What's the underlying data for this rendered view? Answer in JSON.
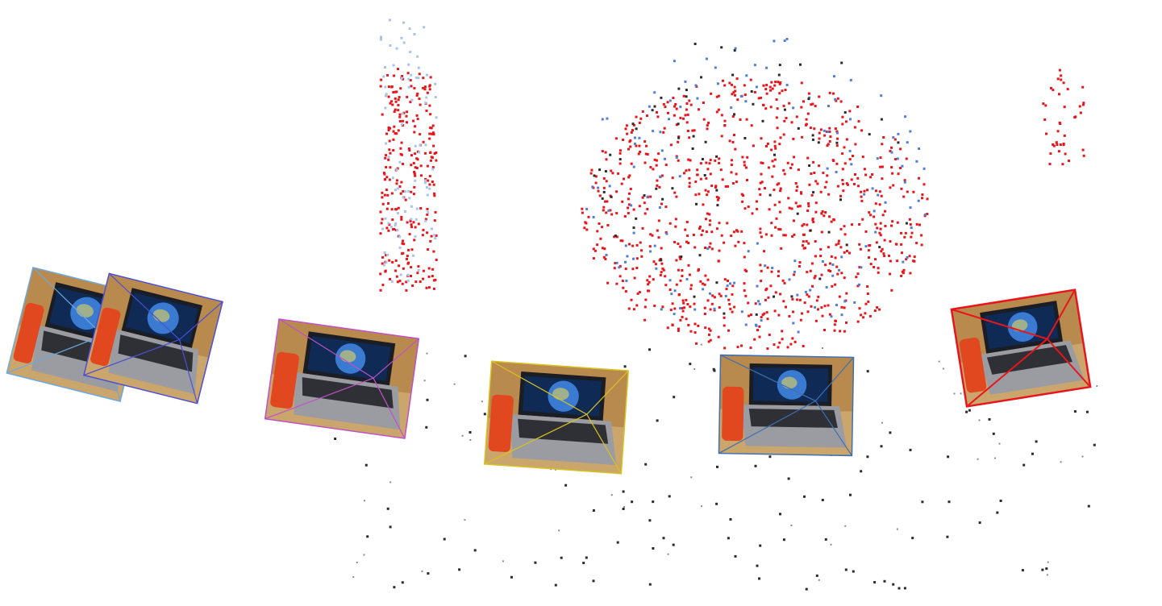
{
  "view": {
    "kind": "3d-reconstruction-viewer",
    "background_color": "#ffffff"
  },
  "point_cloud": {
    "colors": {
      "primary": "#e8151b",
      "light_blue": "#a9c4ea",
      "blue": "#4f7fd6",
      "dark": "#2b2b2b",
      "gray": "#8a8a8a"
    },
    "clusters": [
      {
        "name": "left-tall-cluster",
        "color": "primary",
        "count": 260
      },
      {
        "name": "left-tall-cluster-light",
        "color": "light_blue",
        "count": 90
      },
      {
        "name": "center-dome-cluster",
        "color": "primary",
        "count": 900
      },
      {
        "name": "center-dome-cluster-blue",
        "color": "blue",
        "count": 150
      },
      {
        "name": "center-dome-cluster-dark",
        "color": "dark",
        "count": 80
      },
      {
        "name": "right-small-cluster",
        "color": "primary",
        "count": 40
      },
      {
        "name": "scattered-ground-points",
        "color": "dark",
        "count": 120
      }
    ]
  },
  "cameras": [
    {
      "name": "camera-1",
      "frame_color": "#6fa8dc",
      "icon": "laptop-globe-photo"
    },
    {
      "name": "camera-2",
      "frame_color": "#4b4fd6",
      "icon": "laptop-globe-photo"
    },
    {
      "name": "camera-3",
      "frame_color": "#c050c8",
      "icon": "laptop-globe-photo"
    },
    {
      "name": "camera-4",
      "frame_color": "#d9c21f",
      "icon": "laptop-globe-photo"
    },
    {
      "name": "camera-5",
      "frame_color": "#3f6fb0",
      "icon": "laptop-globe-photo"
    },
    {
      "name": "camera-6",
      "frame_color": "#e8151b",
      "icon": "laptop-globe-photo"
    }
  ]
}
